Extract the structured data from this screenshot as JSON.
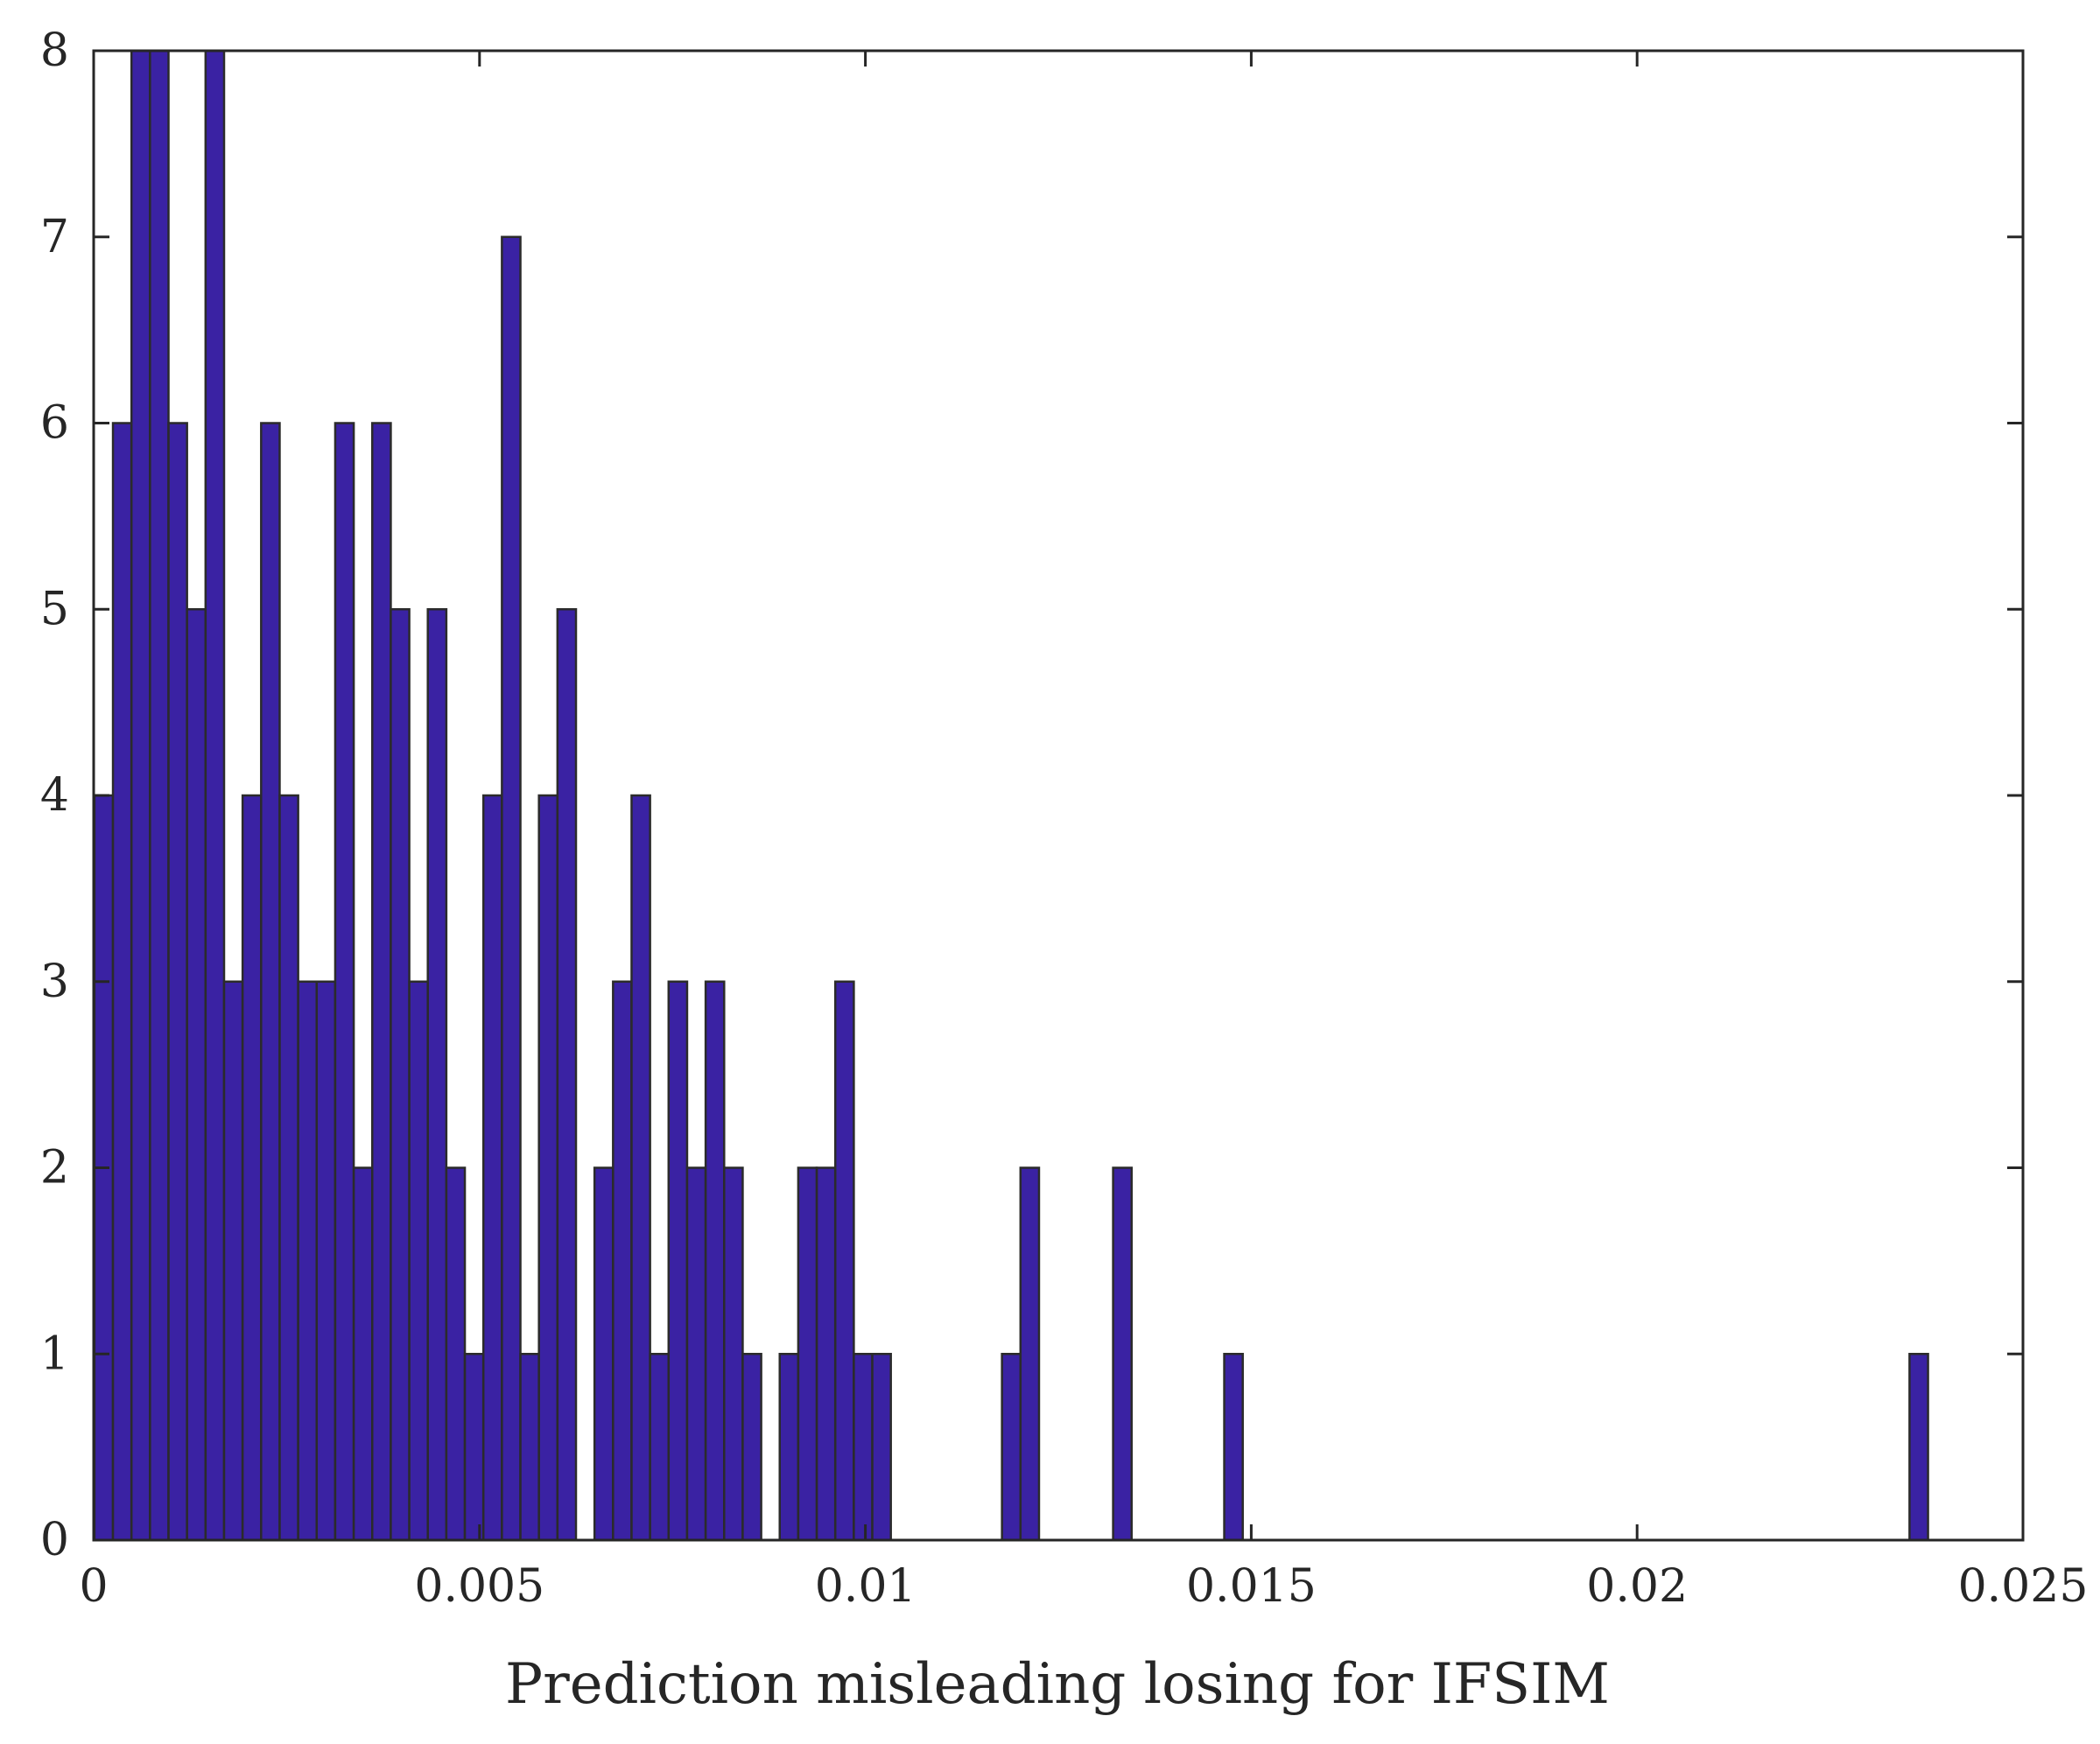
{
  "chart_data": {
    "type": "bar",
    "subtype": "histogram",
    "title": "",
    "xlabel": "Prediction misleading losing for IFSIM",
    "ylabel": "",
    "xlim": [
      0,
      0.025
    ],
    "ylim": [
      0,
      8
    ],
    "x_ticks": [
      0,
      0.005,
      0.01,
      0.015,
      0.02,
      0.025
    ],
    "x_tick_labels": [
      "0",
      "0.005",
      "0.01",
      "0.015",
      "0.02",
      "0.025"
    ],
    "y_ticks": [
      0,
      1,
      2,
      3,
      4,
      5,
      6,
      7,
      8
    ],
    "y_tick_labels": [
      "0",
      "1",
      "2",
      "3",
      "4",
      "5",
      "6",
      "7",
      "8"
    ],
    "grid": false,
    "bar_color": "#3a22a3",
    "edge_color": "#2b2b2b",
    "bin_width": 0.00024,
    "bin_start": 1e-05,
    "counts": [
      4,
      6,
      8,
      8,
      6,
      5,
      8,
      3,
      4,
      6,
      4,
      3,
      3,
      6,
      2,
      6,
      5,
      3,
      5,
      2,
      1,
      4,
      7,
      1,
      4,
      5,
      0,
      2,
      3,
      4,
      1,
      3,
      2,
      3,
      2,
      1,
      0,
      1,
      2,
      2,
      3,
      1,
      1,
      0,
      0,
      0,
      0,
      0,
      0,
      1,
      2,
      0,
      0,
      0,
      0,
      2,
      0,
      0,
      0,
      0,
      0,
      1,
      0,
      0,
      0,
      0,
      0,
      0,
      0,
      0,
      0,
      0,
      0,
      0,
      0,
      0,
      0,
      0,
      0,
      0,
      0,
      0,
      0,
      0,
      0,
      0,
      0,
      0,
      0,
      0,
      0,
      0,
      0,
      0,
      0,
      0,
      0,
      0,
      1
    ]
  }
}
